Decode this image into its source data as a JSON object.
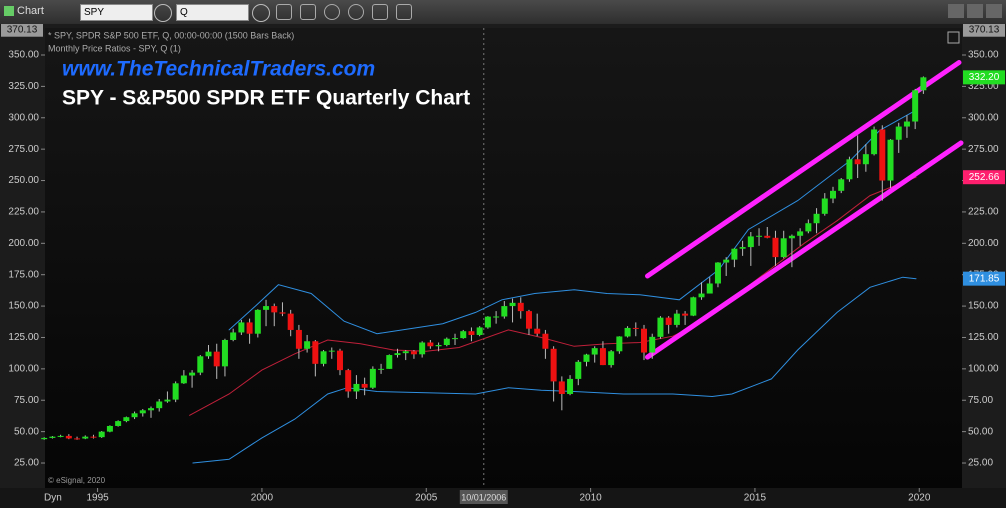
{
  "toolbar": {
    "app": "Chart",
    "symbol": "SPY",
    "interval": "Q"
  },
  "chart_data": {
    "type": "candlestick",
    "title": "SPY - S&P500 SPDR ETF Quarterly Chart",
    "subtitle": "www.TheTechnicalTraders.com",
    "info_lines": [
      "* SPY, SPDR S&P 500 ETF, Q, 00:00-00:00 (1500 Bars Back)",
      "Monthly Price Ratios - SPY, Q (1)"
    ],
    "copyright": "© eSignal, 2020",
    "footer_left": "Dyn",
    "up_color": "#22dd22",
    "down_color": "#ee1111",
    "xlim": [
      1993.4,
      2021.3
    ],
    "xticks": [
      1995,
      2000,
      2005,
      2010,
      2015,
      2020
    ],
    "ylim": [
      5.9,
      371.5
    ],
    "yticks": [
      {
        "value": 25,
        "label": "25.00"
      },
      {
        "value": 50,
        "label": "50.00"
      },
      {
        "value": 75,
        "label": "75.00"
      },
      {
        "value": 100,
        "label": "100.00"
      },
      {
        "value": 125,
        "label": "125.00"
      },
      {
        "value": 150,
        "label": "150.00"
      },
      {
        "value": 175,
        "label": "175.00"
      },
      {
        "value": 200,
        "label": "200.00"
      },
      {
        "value": 225,
        "label": "225.00"
      },
      {
        "value": 250,
        "label": "250.00"
      },
      {
        "value": 275,
        "label": "275.00"
      },
      {
        "value": 300,
        "label": "300.00"
      },
      {
        "value": 325,
        "label": "325.00"
      },
      {
        "value": 350,
        "label": "350.00"
      }
    ],
    "x": [
      1993.25,
      1993.5,
      1993.75,
      1994,
      1994.25,
      1994.5,
      1994.75,
      1995,
      1995.25,
      1995.5,
      1995.75,
      1996,
      1996.25,
      1996.5,
      1996.75,
      1997,
      1997.25,
      1997.5,
      1997.75,
      1998,
      1998.25,
      1998.5,
      1998.75,
      1999,
      1999.25,
      1999.5,
      1999.75,
      2000,
      2000.25,
      2000.5,
      2000.75,
      2001,
      2001.25,
      2001.5,
      2001.75,
      2002,
      2002.25,
      2002.5,
      2002.75,
      2003,
      2003.25,
      2003.5,
      2003.75,
      2004,
      2004.25,
      2004.5,
      2004.75,
      2005,
      2005.25,
      2005.5,
      2005.75,
      2006,
      2006.25,
      2006.5,
      2006.75,
      2007,
      2007.25,
      2007.5,
      2007.75,
      2008,
      2008.25,
      2008.5,
      2008.75,
      2009,
      2009.25,
      2009.5,
      2009.75,
      2010,
      2010.25,
      2010.5,
      2010.75,
      2011,
      2011.25,
      2011.5,
      2011.75,
      2012,
      2012.25,
      2012.5,
      2012.75,
      2013,
      2013.25,
      2013.5,
      2013.75,
      2014,
      2014.25,
      2014.5,
      2014.75,
      2015,
      2015.25,
      2015.5,
      2015.75,
      2016,
      2016.25,
      2016.5,
      2016.75,
      2017,
      2017.25,
      2017.5,
      2017.75,
      2018,
      2018.25,
      2018.5,
      2018.75,
      2019,
      2019.25,
      2019.5,
      2019.75,
      2020
    ],
    "open": [
      44,
      45,
      46,
      46.6,
      44.6,
      44.5,
      46,
      45.6,
      50,
      54.5,
      58.4,
      61.5,
      64.6,
      67,
      68.7,
      74,
      75.5,
      88.5,
      94.7,
      97,
      110,
      113.7,
      102,
      123,
      129,
      137,
      128,
      147,
      150,
      145,
      144,
      131,
      116,
      122,
      104,
      114,
      114.5,
      99,
      82,
      88,
      85,
      100,
      100,
      111,
      112.5,
      114,
      111.6,
      121,
      118,
      119,
      124,
      124.5,
      130,
      127,
      133,
      141.6,
      141.7,
      150,
      152.6,
      146,
      132,
      128,
      116,
      90,
      80,
      92,
      105.6,
      111.4,
      116.5,
      103,
      114,
      125.8,
      132.6,
      132,
      113,
      125.5,
      140.8,
      135,
      144,
      142.4,
      157,
      160,
      168,
      184.7,
      187,
      195.7,
      197,
      205.5,
      206,
      204.4,
      189,
      204,
      206,
      209.5,
      216,
      223.5,
      235.7,
      241.8,
      251,
      266.9,
      263,
      271,
      290.7,
      250,
      282.5,
      293,
      297,
      321.9
    ],
    "high": [
      45.5,
      46.5,
      47.5,
      48,
      46,
      47,
      47.5,
      50.5,
      55,
      59,
      62,
      66,
      68,
      70,
      76,
      82,
      90,
      99,
      99,
      111,
      119,
      120,
      124,
      132,
      139,
      140,
      147.5,
      155,
      152,
      153,
      147,
      135,
      127,
      123,
      115,
      117,
      116,
      100,
      95,
      93,
      102,
      104,
      111.5,
      116,
      115,
      115,
      122,
      123,
      121,
      125,
      128,
      131,
      133,
      134,
      142,
      146,
      154,
      156,
      157,
      147,
      144,
      131,
      118,
      94,
      95,
      107,
      112,
      118,
      122,
      115,
      126,
      134,
      137,
      135,
      128,
      142,
      142,
      147,
      146,
      157.5,
      169,
      173,
      185,
      189,
      196,
      202,
      209,
      212,
      213,
      210,
      210,
      207,
      212,
      219,
      228,
      240,
      245,
      252,
      269,
      286,
      279,
      293,
      294,
      283,
      296,
      302,
      323,
      332.9
    ],
    "low": [
      43.5,
      44.5,
      45.5,
      44,
      43.5,
      44,
      44.5,
      45,
      49.5,
      54,
      57.5,
      60,
      62,
      61,
      66,
      73,
      73.5,
      88,
      85,
      95,
      108,
      92,
      94,
      122,
      127,
      120,
      125,
      134,
      134,
      142,
      126,
      108,
      113,
      94,
      102,
      108,
      95,
      77,
      76,
      79,
      84,
      96,
      100,
      109,
      107,
      108,
      109,
      116,
      114,
      118,
      119,
      124,
      122,
      126,
      132,
      136,
      140,
      137,
      140,
      127,
      126,
      108,
      74,
      67,
      79,
      87,
      102,
      105,
      103,
      101,
      112,
      125,
      126,
      107,
      108,
      124,
      128,
      133,
      135,
      142,
      155,
      160,
      165,
      174,
      181,
      190,
      182,
      198,
      204,
      182,
      188,
      181,
      198,
      208,
      208,
      222,
      232,
      240,
      249,
      252,
      257,
      270,
      234,
      244,
      272,
      284,
      291,
      319
    ],
    "close": [
      45,
      46,
      46.6,
      44.6,
      44.5,
      46,
      45.6,
      50,
      54.5,
      58.4,
      61.5,
      64.6,
      67,
      68.7,
      74,
      75.5,
      88.5,
      94.7,
      97,
      110,
      113.7,
      102,
      123,
      129,
      137,
      128,
      147,
      150,
      145,
      144,
      131,
      116,
      122,
      104,
      114,
      114.5,
      99,
      82,
      88,
      85,
      100,
      100,
      111,
      112.5,
      114,
      111.6,
      121,
      118,
      119,
      124,
      124.5,
      130,
      127,
      133,
      141.6,
      141.7,
      150,
      152.6,
      146,
      132,
      128,
      116,
      90,
      80,
      92,
      105.6,
      111.4,
      116.5,
      103,
      114,
      125.8,
      132.6,
      132,
      113,
      125.5,
      140.8,
      135,
      144,
      142.4,
      157,
      160,
      168,
      184.7,
      187,
      195.7,
      197,
      205.5,
      206,
      204.4,
      189,
      204,
      206,
      209.5,
      216,
      223.5,
      235.7,
      241.8,
      251,
      266.9,
      263,
      271,
      290.7,
      250,
      282.5,
      293,
      297,
      321.9,
      332.2
    ],
    "lines": [
      {
        "name": "upper_band",
        "color": "#2f8fe0",
        "x": [
          1999,
          1999.8,
          2000.5,
          2001.5,
          2002.5,
          2003.5,
          2004.5,
          2005.5,
          2006.5,
          2007.3,
          2008.3,
          2009.5,
          2010.5,
          2011.5,
          2012.7,
          2013.9,
          2014.8,
          2016.3,
          2017.9,
          2018.8,
          2019.9
        ],
        "values": [
          131,
          150,
          167,
          160,
          138,
          128,
          132,
          136,
          145,
          155,
          160,
          163,
          160,
          159,
          155,
          179,
          211,
          234,
          266,
          290,
          306
        ]
      },
      {
        "name": "middle_band",
        "color": "#c0203a",
        "x": [
          1997.8,
          1999,
          2000,
          2001,
          2002,
          2003,
          2004,
          2005,
          2006,
          2007.5,
          2008.5,
          2009.5,
          2010.5,
          2011.5,
          2012.5,
          2013.5,
          2014.5,
          2015.5,
          2016.5,
          2017.5,
          2018.5,
          2019.9
        ],
        "values": [
          63,
          80,
          99,
          112,
          123,
          120,
          115,
          114,
          117,
          131,
          125,
          118,
          120,
          121,
          126,
          139,
          160,
          180,
          200,
          218,
          238,
          252.66
        ]
      },
      {
        "name": "lower_band",
        "color": "#2f8fe0",
        "x": [
          1997.9,
          1999,
          2000,
          2001,
          2002,
          2002.6,
          2003.5,
          2005,
          2006.5,
          2007.5,
          2008.5,
          2009.5,
          2011,
          2012.5,
          2013.7,
          2014.3,
          2015.5,
          2016.3,
          2017.5,
          2018.5,
          2019.5,
          2019.9
        ],
        "values": [
          25,
          28,
          45,
          60,
          80,
          85,
          82,
          81,
          80,
          85,
          83,
          82,
          80,
          80,
          78,
          80,
          92,
          115,
          145,
          165,
          173,
          171.85
        ]
      },
      {
        "name": "channel_upper",
        "color": "#ff22ff",
        "x": [
          2011.73,
          2021.21
        ],
        "values": [
          174,
          344
        ]
      },
      {
        "name": "channel_lower",
        "color": "#ff22ff",
        "x": [
          2011.73,
          2021.27
        ],
        "values": [
          109.4,
          280
        ]
      }
    ],
    "price_labels": [
      {
        "value": 370.13,
        "label": "370.13",
        "color": "#9a9a9a"
      },
      {
        "value": 332.2,
        "label": "332.20",
        "color": "#22dd22"
      },
      {
        "value": 252.66,
        "label": "252.66",
        "color": "#ff1f6e"
      },
      {
        "value": 171.85,
        "label": "171.85",
        "color": "#2f8fe0"
      }
    ],
    "crosshair": {
      "value": 2006.75,
      "label": "10/01/2006"
    }
  }
}
